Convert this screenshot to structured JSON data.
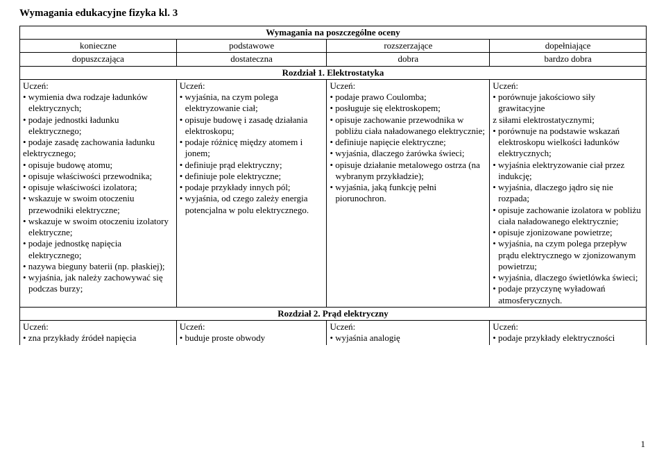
{
  "title": "Wymagania edukacyjne fizyka kl. 3",
  "header_row0": "Wymagania na poszczególne oceny",
  "header_row1": {
    "c1": "konieczne",
    "c2": "podstawowe",
    "c3": "rozszerzające",
    "c4": "dopełniające"
  },
  "header_row2": {
    "c1": "dopuszczająca",
    "c2": "dostateczna",
    "c3": "dobra",
    "c4": "bardzo dobra"
  },
  "chapter1": "Rozdział 1. Elektrostatyka",
  "uczen": "Uczeń:",
  "ch1": {
    "col1": [
      "• wymienia dwa rodzaje ładunków elektrycznych;",
      "• podaje jednostki ładunku elektrycznego;",
      "• podaje zasadę zachowania ładunku",
      "elektrycznego;",
      "• opisuje budowę atomu;",
      "• opisuje właściwości przewodnika;",
      "• opisuje właściwości izolatora;",
      "• wskazuje w swoim otoczeniu przewodniki elektryczne;",
      "• wskazuje w swoim otoczeniu izolatory elektryczne;",
      "• podaje jednostkę napięcia elektrycznego;",
      "• nazywa bieguny baterii (np. płaskiej);",
      "• wyjaśnia, jak należy zachowywać się podczas burzy;"
    ],
    "col2": [
      "• wyjaśnia, na czym polega elektryzowanie ciał;",
      "• opisuje budowę i zasadę działania elektroskopu;",
      "• podaje różnicę między atomem i jonem;",
      "• definiuje prąd elektryczny;",
      "• definiuje pole elektryczne;",
      "• podaje przykłady innych pól;",
      "• wyjaśnia, od czego zależy energia potencjalna w polu elektrycznego."
    ],
    "col3": [
      "• podaje prawo Coulomba;",
      "• posługuje się elektroskopem;",
      "• opisuje zachowanie przewodnika w pobliżu ciała naładowanego elektrycznie;",
      "• definiuje napięcie elektryczne;",
      "• wyjaśnia, dlaczego żarówka świeci;",
      "• opisuje działanie metalowego ostrza (na wybranym przykładzie);",
      "• wyjaśnia, jaką funkcję pełni piorunochron."
    ],
    "col4": [
      "• porównuje jakościowo siły grawitacyjne",
      "z siłami elektrostatycznymi;",
      "• porównuje na podstawie wskazań elektroskopu wielkości ładunków elektrycznych;",
      "• wyjaśnia elektryzowanie ciał przez indukcję;",
      "• wyjaśnia, dlaczego jądro się nie rozpada;",
      "• opisuje zachowanie izolatora w pobliżu ciała naładowanego elektrycznie;",
      "• opisuje zjonizowane powietrze;",
      "• wyjaśnia, na czym polega przepływ prądu elektrycznego w zjonizowanym powietrzu;",
      "• wyjaśnia, dlaczego świetlówka świeci;",
      "• podaje przyczynę wyładowań atmosferycznych."
    ]
  },
  "chapter2": "Rozdział 2. Prąd elektryczny",
  "ch2": {
    "col1": [
      "• zna przykłady źródeł napięcia"
    ],
    "col2": [
      "• buduje proste obwody"
    ],
    "col3": [
      "• wyjaśnia analogię"
    ],
    "col4": [
      "• podaje przykłady elektryczności"
    ]
  },
  "pagenum": "1"
}
